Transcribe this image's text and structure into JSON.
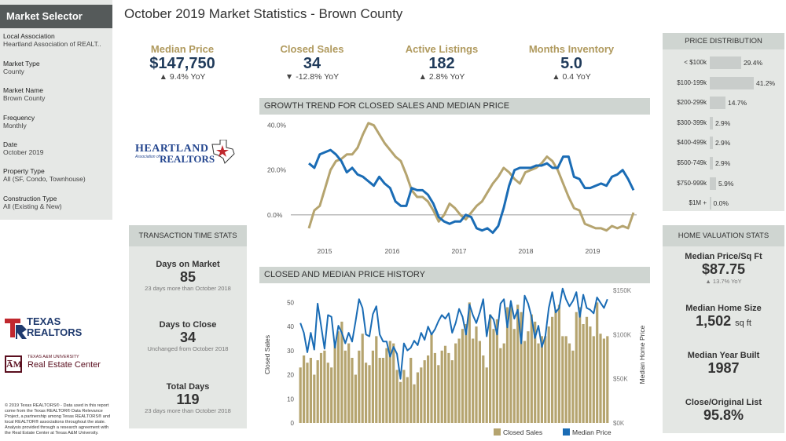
{
  "sidebar": {
    "header": "Market Selector",
    "filters": [
      {
        "label": "Local Association",
        "value": "Heartland Association of REALT.."
      },
      {
        "label": "Market Type",
        "value": "County"
      },
      {
        "label": "Market Name",
        "value": "Brown County"
      },
      {
        "label": "Frequency",
        "value": "Monthly"
      },
      {
        "label": "Date",
        "value": "October 2019"
      },
      {
        "label": "Property Type",
        "value": "All (SF, Condo, Townhouse)"
      },
      {
        "label": "Construction Type",
        "value": "All (Existing & New)"
      }
    ],
    "logo_heartland_top": "HEARTLAND",
    "logo_heartland_mid": "Association of",
    "logo_heartland_bottom": "REALTORS",
    "logo_texas_realtors": "TEXAS REALTORS",
    "logo_tamu_small": "TEXAS A&M UNIVERSITY",
    "logo_tamu_main": "Real Estate Center",
    "footer": "© 2019 Texas REALTORS® - Data used in this report come from the Texas REALTOR® Data Relevance Project, a partnership among Texas REALTORS® and local REALTOR® associations throughout the state. Analysis provided through a research agreement with the Real Estate Center at Texas A&M University."
  },
  "title": "October 2019 Market Statistics - Brown County",
  "kpis": [
    {
      "label": "Median Price",
      "value": "$147,750",
      "change": "▲ 9.4% YoY"
    },
    {
      "label": "Closed Sales",
      "value": "34",
      "change": "▼ -12.8% YoY"
    },
    {
      "label": "Active Listings",
      "value": "182",
      "change": "▲ 2.8% YoY"
    },
    {
      "label": "Months Inventory",
      "value": "5.0",
      "change": "▲ 0.4 YoY"
    }
  ],
  "transaction": {
    "header": "TRANSACTION TIME STATS",
    "items": [
      {
        "label": "Days on Market",
        "value": "85",
        "sub": "23 days more than October 2018"
      },
      {
        "label": "Days to Close",
        "value": "34",
        "sub": "Unchanged from October 2018"
      },
      {
        "label": "Total Days",
        "value": "119",
        "sub": "23 days more than October 2018"
      }
    ]
  },
  "price_distribution": {
    "header": "PRICE DISTRIBUTION",
    "rows": [
      {
        "label": "< $100k",
        "pct": "29.4%",
        "value": 29.4
      },
      {
        "label": "$100-199k",
        "pct": "41.2%",
        "value": 41.2
      },
      {
        "label": "$200-299k",
        "pct": "14.7%",
        "value": 14.7
      },
      {
        "label": "$300-399k",
        "pct": "2.9%",
        "value": 2.9
      },
      {
        "label": "$400-499k",
        "pct": "2.9%",
        "value": 2.9
      },
      {
        "label": "$500-749k",
        "pct": "2.9%",
        "value": 2.9
      },
      {
        "label": "$750-999k",
        "pct": "5.9%",
        "value": 5.9
      },
      {
        "label": "$1M +",
        "pct": "0.0%",
        "value": 0
      }
    ]
  },
  "home_valuation": {
    "header": "HOME VALUATION STATS",
    "items": [
      {
        "label": "Median Price/Sq Ft",
        "value": "$87.75",
        "sub": "▲ 13.7% YoY",
        "unit": ""
      },
      {
        "label": "Median Home Size",
        "value": "1,502",
        "unit": "sq ft",
        "sub": ""
      },
      {
        "label": "Median Year Built",
        "value": "1987",
        "unit": "",
        "sub": ""
      },
      {
        "label": "Close/Original List",
        "value": "95.8%",
        "unit": "",
        "sub": ""
      }
    ]
  },
  "colors": {
    "gold": "#b5a46f",
    "blue": "#1a6cb5"
  },
  "chart_data": [
    {
      "type": "line",
      "title": "GROWTH TREND FOR CLOSED SALES AND MEDIAN PRICE",
      "x_ticks": [
        "2015",
        "2016",
        "2017",
        "2018",
        "2019"
      ],
      "y_ticks": [
        "40.0%",
        "20.0%",
        "0.0%"
      ],
      "ylim": [
        -12,
        42
      ],
      "series": [
        {
          "name": "Closed Sales",
          "color": "#b5a46f",
          "values": [
            -6,
            2,
            4,
            12,
            20,
            24,
            25,
            27,
            27,
            30,
            36,
            41,
            40,
            36,
            32,
            29,
            26,
            24,
            18,
            11,
            8,
            8,
            6,
            2,
            -3,
            0,
            5,
            3,
            0,
            -2,
            1,
            4,
            6,
            10,
            14,
            17,
            21,
            19,
            16,
            14,
            19,
            20,
            21,
            23,
            26,
            24,
            20,
            14,
            8,
            3,
            2,
            -4,
            -5,
            -6,
            -6,
            -7,
            -5,
            -6,
            -5,
            -6,
            1
          ]
        },
        {
          "name": "Median Price",
          "color": "#1a6cb5",
          "values": [
            23,
            21,
            27,
            28,
            29,
            27,
            24,
            19,
            21,
            18,
            17,
            15,
            13,
            17,
            14,
            12,
            6,
            4,
            4,
            12,
            11,
            11,
            9,
            5,
            -1,
            -3,
            -4,
            -3,
            -3,
            0,
            -1,
            -6,
            -7,
            -6,
            -8,
            -5,
            3,
            13,
            20,
            21,
            21,
            21,
            22,
            22,
            23,
            21,
            21,
            26,
            26,
            17,
            16,
            12,
            12,
            13,
            14,
            13,
            17,
            18,
            20,
            16,
            11
          ]
        }
      ]
    },
    {
      "type": "bar",
      "title": "CLOSED AND MEDIAN PRICE HISTORY",
      "ylabel": "Closed Sales",
      "y2label": "Median Home Price",
      "ylim": [
        0,
        55
      ],
      "y2lim": [
        0,
        150000
      ],
      "y_ticks": [
        "50",
        "40",
        "30",
        "20",
        "10",
        "0"
      ],
      "y2_ticks": [
        "$150K",
        "$100K",
        "$50K",
        "$0K"
      ],
      "legend": [
        "Closed Sales",
        "Median Price"
      ],
      "series": [
        {
          "name": "Closed Sales",
          "color": "#b5a46f",
          "values": [
            23,
            28,
            25,
            27,
            20,
            26,
            29,
            30,
            25,
            23,
            33,
            38,
            42,
            30,
            33,
            27,
            20,
            30,
            37,
            25,
            24,
            30,
            36,
            27,
            27,
            31,
            34,
            33,
            22,
            17,
            22,
            19,
            27,
            16,
            21,
            23,
            26,
            28,
            37,
            29,
            24,
            30,
            32,
            29,
            26,
            33,
            35,
            39,
            41,
            50,
            35,
            40,
            34,
            28,
            23,
            45,
            39,
            43,
            31,
            33,
            48,
            49,
            39,
            49,
            46,
            34,
            38,
            45,
            42,
            33,
            36,
            36,
            40,
            44,
            47,
            49,
            36,
            36,
            33,
            30,
            46,
            48,
            41,
            44,
            40,
            36,
            50,
            37,
            35,
            36
          ]
        },
        {
          "name": "Median Price",
          "color": "#1a6cb5",
          "values": [
            113000,
            102000,
            80000,
            102000,
            83000,
            135000,
            110000,
            84000,
            122000,
            120000,
            85000,
            110000,
            102000,
            90000,
            102000,
            92000,
            115000,
            140000,
            130000,
            100000,
            98000,
            123000,
            132000,
            100000,
            92000,
            92000,
            75000,
            86000,
            78000,
            50000,
            90000,
            82000,
            85000,
            93000,
            88000,
            102000,
            94000,
            109000,
            100000,
            106000,
            115000,
            122000,
            118000,
            124000,
            102000,
            113000,
            129000,
            120000,
            100000,
            134000,
            122000,
            113000,
            125000,
            140000,
            98000,
            122000,
            117000,
            100000,
            135000,
            140000,
            108000,
            138000,
            118000,
            128000,
            90000,
            144000,
            135000,
            120000,
            96000,
            110000,
            86000,
            98000,
            130000,
            148000,
            125000,
            130000,
            152000,
            140000,
            132000,
            138000,
            148000,
            120000,
            145000,
            130000,
            128000,
            124000,
            142000,
            136000,
            130000,
            140000
          ]
        }
      ]
    }
  ]
}
